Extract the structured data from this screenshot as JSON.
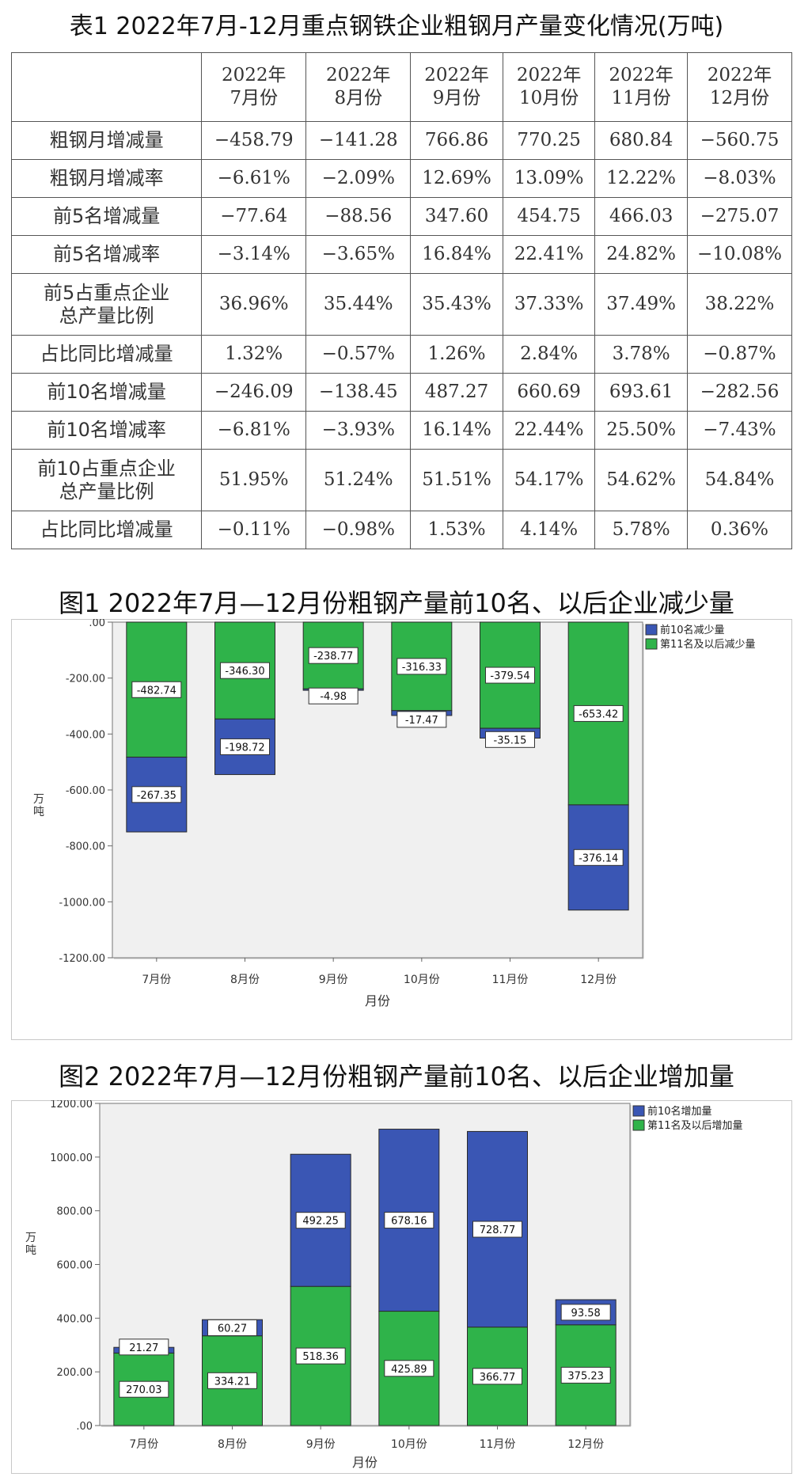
{
  "table": {
    "title": "表1  2022年7月-12月重点钢铁企业粗钢月产量变化情况(万吨)",
    "columns": [
      {
        "line1": "2022年",
        "line2": "7月份"
      },
      {
        "line1": "2022年",
        "line2": "8月份"
      },
      {
        "line1": "2022年",
        "line2": "9月份"
      },
      {
        "line1": "2022年",
        "line2": "10月份"
      },
      {
        "line1": "2022年",
        "line2": "11月份"
      },
      {
        "line1": "2022年",
        "line2": "12月份"
      }
    ],
    "rows": [
      {
        "label1": "粗钢月增减量",
        "label2": "",
        "cells": [
          "−458.79",
          "−141.28",
          "766.86",
          "770.25",
          "680.84",
          "−560.75"
        ]
      },
      {
        "label1": "粗钢月增减率",
        "label2": "",
        "cells": [
          "−6.61%",
          "−2.09%",
          "12.69%",
          "13.09%",
          "12.22%",
          "−8.03%"
        ]
      },
      {
        "label1": "前5名增减量",
        "label2": "",
        "cells": [
          "−77.64",
          "−88.56",
          "347.60",
          "454.75",
          "466.03",
          "−275.07"
        ]
      },
      {
        "label1": "前5名增减率",
        "label2": "",
        "cells": [
          "−3.14%",
          "−3.65%",
          "16.84%",
          "22.41%",
          "24.82%",
          "−10.08%"
        ]
      },
      {
        "label1": "前5占重点企业",
        "label2": "总产量比例",
        "cells": [
          "36.96%",
          "35.44%",
          "35.43%",
          "37.33%",
          "37.49%",
          "38.22%"
        ]
      },
      {
        "label1": "占比同比增减量",
        "label2": "",
        "cells": [
          "1.32%",
          "−0.57%",
          "1.26%",
          "2.84%",
          "3.78%",
          "−0.87%"
        ]
      },
      {
        "label1": "前10名增减量",
        "label2": "",
        "cells": [
          "−246.09",
          "−138.45",
          "487.27",
          "660.69",
          "693.61",
          "−282.56"
        ]
      },
      {
        "label1": "前10名增减率",
        "label2": "",
        "cells": [
          "−6.81%",
          "−3.93%",
          "16.14%",
          "22.44%",
          "25.50%",
          "−7.43%"
        ]
      },
      {
        "label1": "前10占重点企业",
        "label2": "总产量比例",
        "cells": [
          "51.95%",
          "51.24%",
          "51.51%",
          "54.17%",
          "54.62%",
          "54.84%"
        ]
      },
      {
        "label1": "占比同比增减量",
        "label2": "",
        "cells": [
          "−0.11%",
          "−0.98%",
          "1.53%",
          "4.14%",
          "5.78%",
          "0.36%"
        ]
      }
    ]
  },
  "chart_data": [
    {
      "type": "bar",
      "stacked": true,
      "title": "图1   2022年7月—12月份粗钢产量前10名、以后企业减少量",
      "categories": [
        "7月份",
        "8月份",
        "9月份",
        "10月份",
        "11月份",
        "12月份"
      ],
      "xlabel": "月份",
      "ylabel": "万吨",
      "ylim": [
        -1200,
        0
      ],
      "yticks": [
        0,
        -200,
        -400,
        -600,
        -800,
        -1000,
        -1200
      ],
      "yticklabels": [
        ".00",
        "-200.00",
        "-400.00",
        "-600.00",
        "-800.00",
        "-1000.00",
        "-1200.00"
      ],
      "legend_position": "right",
      "series": [
        {
          "name": "第11名及以后减少量",
          "color": "#2fb34a",
          "values": [
            -482.74,
            -346.3,
            -238.77,
            -316.33,
            -379.54,
            -653.42
          ],
          "labels": [
            "-482.74",
            "-346.30",
            "-238.77",
            "-316.33",
            "-379.54",
            "-653.42"
          ]
        },
        {
          "name": "前10名减少量",
          "color": "#3a56b4",
          "values": [
            -267.35,
            -198.72,
            -4.98,
            -17.47,
            -35.15,
            -376.14
          ],
          "labels": [
            "-267.35",
            "-198.72",
            "-4.98",
            "-17.47",
            "-35.15",
            "-376.14"
          ]
        }
      ],
      "legend": [
        "前10名减少量",
        "第11名及以后减少量"
      ]
    },
    {
      "type": "bar",
      "stacked": true,
      "title": "图2   2022年7月—12月份粗钢产量前10名、以后企业增加量",
      "categories": [
        "7月份",
        "8月份",
        "9月份",
        "10月份",
        "11月份",
        "12月份"
      ],
      "xlabel": "月份",
      "ylabel": "万吨",
      "ylim": [
        0,
        1200
      ],
      "yticks": [
        0,
        200,
        400,
        600,
        800,
        1000,
        1200
      ],
      "yticklabels": [
        ".00",
        "200.00",
        "400.00",
        "600.00",
        "800.00",
        "1000.00",
        "1200.00"
      ],
      "legend_position": "right",
      "series": [
        {
          "name": "第11名及以后增加量",
          "color": "#2fb34a",
          "values": [
            270.03,
            334.21,
            518.36,
            425.89,
            366.77,
            375.23
          ],
          "labels": [
            "270.03",
            "334.21",
            "518.36",
            "425.89",
            "366.77",
            "375.23"
          ]
        },
        {
          "name": "前10名增加量",
          "color": "#3a56b4",
          "values": [
            21.27,
            60.27,
            492.25,
            678.16,
            728.77,
            93.58
          ],
          "labels": [
            "21.27",
            "60.27",
            "492.25",
            "678.16",
            "728.77",
            "93.58"
          ]
        }
      ],
      "legend": [
        "前10名增加量",
        "第11名及以后增加量"
      ]
    }
  ]
}
